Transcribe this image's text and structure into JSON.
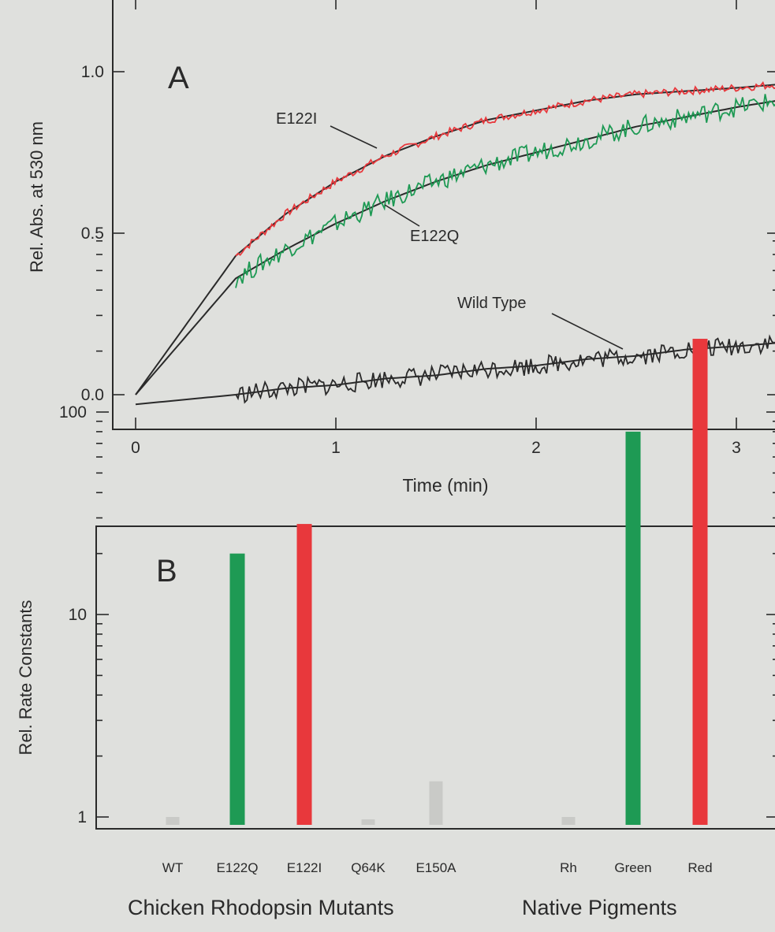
{
  "chart_data": [
    {
      "type": "line",
      "panel_label": "A",
      "xlabel": "Time (min)",
      "ylabel": "Rel. Abs. at 530 nm",
      "xlim": [
        0,
        3.2
      ],
      "ylim": [
        -0.1,
        1.2
      ],
      "x_ticks": [
        "0",
        "1",
        "2",
        "3"
      ],
      "y_ticks": [
        "0.0",
        "0.5",
        "1.0"
      ],
      "x_tick_values": [
        0,
        1,
        2,
        3
      ],
      "y_tick_values": [
        0,
        0.5,
        1.0
      ],
      "series": [
        {
          "name": "E122I",
          "color": "#e8383c",
          "fit_color": "#2a2a2a",
          "x": [
            0.5,
            0.75,
            1.0,
            1.25,
            1.5,
            1.75,
            2.0,
            2.25,
            2.5,
            2.75,
            3.0,
            3.2
          ],
          "y": [
            0.43,
            0.56,
            0.66,
            0.74,
            0.8,
            0.85,
            0.88,
            0.91,
            0.93,
            0.94,
            0.95,
            0.96
          ]
        },
        {
          "name": "E122Q",
          "color": "#1e9a54",
          "fit_color": "#2a2a2a",
          "x": [
            0.5,
            0.75,
            1.0,
            1.25,
            1.5,
            1.75,
            2.0,
            2.25,
            2.5,
            2.75,
            3.0,
            3.2
          ],
          "y": [
            0.36,
            0.45,
            0.53,
            0.6,
            0.66,
            0.71,
            0.75,
            0.79,
            0.83,
            0.86,
            0.89,
            0.91
          ]
        },
        {
          "name": "Wild Type",
          "color": "#2a2a2a",
          "fit_color": "#2a2a2a",
          "x": [
            0.5,
            0.75,
            1.0,
            1.25,
            1.5,
            1.75,
            2.0,
            2.25,
            2.5,
            2.75,
            3.0,
            3.2
          ],
          "y": [
            0.0,
            0.02,
            0.03,
            0.05,
            0.06,
            0.08,
            0.09,
            0.11,
            0.12,
            0.14,
            0.15,
            0.16
          ]
        }
      ],
      "annotations": [
        "E122I",
        "E122Q",
        "Wild Type"
      ]
    },
    {
      "type": "bar",
      "panel_label": "B",
      "ylabel": "Rel. Rate Constants",
      "yscale": "log",
      "ylim": [
        0.8,
        700
      ],
      "y_ticks": [
        "1",
        "10",
        "100"
      ],
      "y_tick_values": [
        1,
        10,
        100
      ],
      "categories": [
        "WT",
        "E122Q",
        "E122I",
        "Q64K",
        "E150A",
        "Rh",
        "Green",
        "Red"
      ],
      "values": [
        1,
        20,
        28,
        0.9,
        1.5,
        1,
        80,
        230
      ],
      "colors": [
        "#c9cac7",
        "#1e9a54",
        "#e8383c",
        "#c9cac7",
        "#c9cac7",
        "#c9cac7",
        "#1e9a54",
        "#e8383c"
      ],
      "group_labels": [
        "Chicken Rhodopsin Mutants",
        "Native Pigments"
      ]
    }
  ]
}
